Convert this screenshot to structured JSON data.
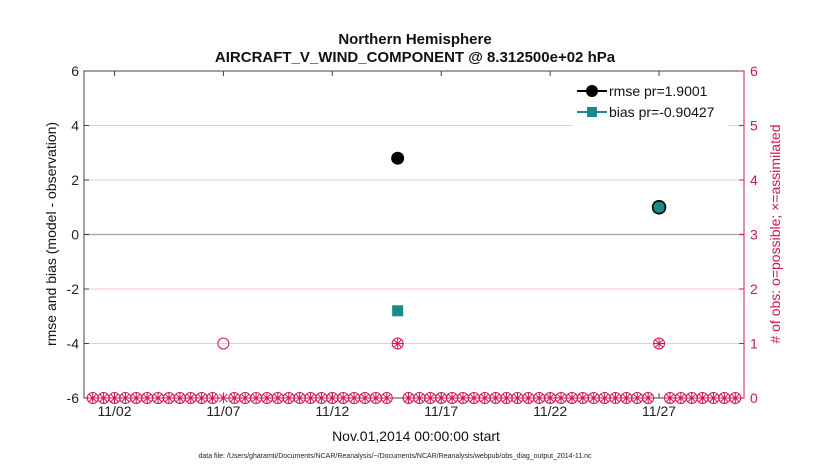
{
  "chart_data": {
    "type": "scatter",
    "title": "Northern Hemisphere",
    "subtitle": "AIRCRAFT_V_WIND_COMPONENT @ 8.312500e+02 hPa",
    "xlabel": "Nov.01,2014 00:00:00 start",
    "ylabel": "rmse and bias (model - observation)",
    "ylabel_right": "# of obs: o=possible; ×=assimilated",
    "footer": "data file: /Users/gharamti/Documents/NCAR/Reanalysis/~/Documents/NCAR/Reanalysis/webpub/obs_diag_output_2014-11.nc",
    "xlim": [
      0.6,
      30.9
    ],
    "ylim": [
      -6,
      6
    ],
    "ylim_right": [
      0,
      6
    ],
    "x_ticks": [
      2,
      7,
      12,
      17,
      22,
      27
    ],
    "x_tick_labels": [
      "11/02",
      "11/07",
      "11/12",
      "11/17",
      "11/22",
      "11/27"
    ],
    "y_ticks": [
      -6,
      -4,
      -2,
      0,
      2,
      4,
      6
    ],
    "y_tick_labels": [
      "-6",
      "-4",
      "-2",
      "0",
      "2",
      "4",
      "6"
    ],
    "y_right_ticks": [
      0,
      1,
      2,
      3,
      4,
      5,
      6
    ],
    "y_right_tick_labels": [
      "0",
      "1",
      "2",
      "3",
      "4",
      "5",
      "6"
    ],
    "series": [
      {
        "name": "rmse",
        "legend": "rmse pr=1.9001",
        "color": "#000000",
        "marker": "circle",
        "x": [
          15,
          27
        ],
        "values": [
          2.8,
          1.0
        ]
      },
      {
        "name": "bias",
        "legend": "bias pr=-0.90427",
        "color": "#1a8a8a",
        "marker": "square",
        "x": [
          15,
          27
        ],
        "values": [
          -2.8,
          1.0
        ]
      }
    ],
    "obs_possible": {
      "color": "#d0145a",
      "x": [
        1,
        1.5,
        2,
        2.5,
        3,
        3.5,
        4,
        4.5,
        5,
        5.5,
        6,
        6.5,
        7,
        7.5,
        8,
        8.5,
        9,
        9.5,
        10,
        10.5,
        11,
        11.5,
        12,
        12.5,
        13,
        13.5,
        14,
        14.5,
        15,
        15.5,
        16,
        16.5,
        17,
        17.5,
        18,
        18.5,
        19,
        19.5,
        20,
        20.5,
        21,
        21.5,
        22,
        22.5,
        23,
        23.5,
        24,
        24.5,
        25,
        25.5,
        26,
        26.5,
        27,
        27.5,
        28,
        28.5,
        29,
        29.5,
        30,
        30.5
      ],
      "values": [
        0,
        0,
        0,
        0,
        0,
        0,
        0,
        0,
        0,
        0,
        0,
        0,
        1,
        0,
        0,
        0,
        0,
        0,
        0,
        0,
        0,
        0,
        0,
        0,
        0,
        0,
        0,
        0,
        1,
        0,
        0,
        0,
        0,
        0,
        0,
        0,
        0,
        0,
        0,
        0,
        0,
        0,
        0,
        0,
        0,
        0,
        0,
        0,
        0,
        0,
        0,
        0,
        1,
        0,
        0,
        0,
        0,
        0,
        0,
        0
      ]
    },
    "obs_assimilated": {
      "color": "#d0145a",
      "x": [
        1,
        1.5,
        2,
        2.5,
        3,
        3.5,
        4,
        4.5,
        5,
        5.5,
        6,
        6.5,
        7,
        7.5,
        8,
        8.5,
        9,
        9.5,
        10,
        10.5,
        11,
        11.5,
        12,
        12.5,
        13,
        13.5,
        14,
        14.5,
        15,
        15.5,
        16,
        16.5,
        17,
        17.5,
        18,
        18.5,
        19,
        19.5,
        20,
        20.5,
        21,
        21.5,
        22,
        22.5,
        23,
        23.5,
        24,
        24.5,
        25,
        25.5,
        26,
        26.5,
        27,
        27.5,
        28,
        28.5,
        29,
        29.5,
        30,
        30.5
      ],
      "values": [
        0,
        0,
        0,
        0,
        0,
        0,
        0,
        0,
        0,
        0,
        0,
        0,
        0,
        0,
        0,
        0,
        0,
        0,
        0,
        0,
        0,
        0,
        0,
        0,
        0,
        0,
        0,
        0,
        1,
        0,
        0,
        0,
        0,
        0,
        0,
        0,
        0,
        0,
        0,
        0,
        0,
        0,
        0,
        0,
        0,
        0,
        0,
        0,
        0,
        0,
        0,
        0,
        1,
        0,
        0,
        0,
        0,
        0,
        0,
        0
      ]
    },
    "legend_position": "top-right",
    "zero_line_color": "#b0b0b0",
    "grid_color": "#f4c6d6"
  }
}
